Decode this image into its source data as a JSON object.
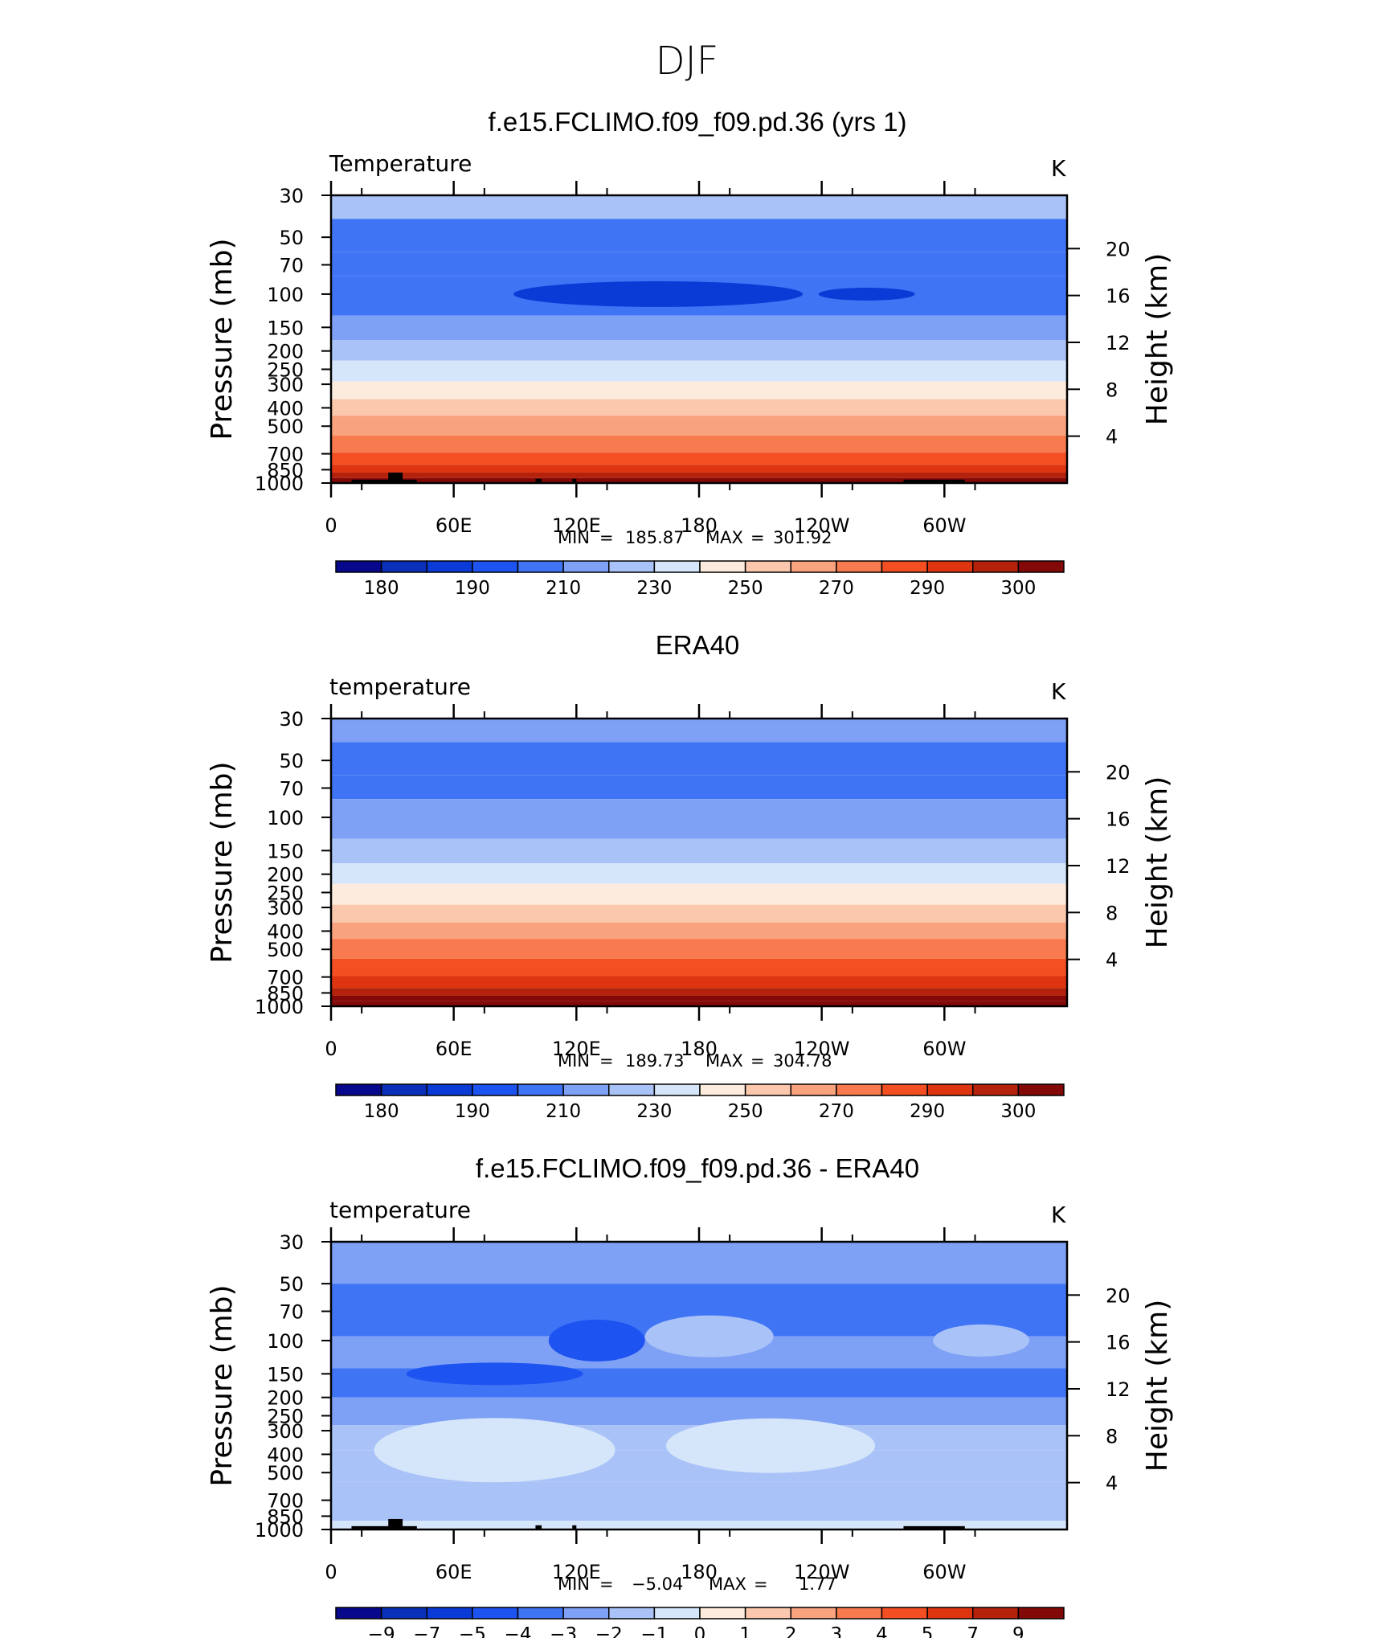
{
  "figure_title": "DJF",
  "colors": {
    "palette": [
      "#08088C",
      "#0A2FB8",
      "#0A3BD6",
      "#1D53F0",
      "#3F74F5",
      "#7EA0F5",
      "#A9C2F7",
      "#D5E6FA",
      "#FDECDD",
      "#FBC8AD",
      "#F9A27E",
      "#F77B4E",
      "#F34F23",
      "#DE3510",
      "#B4220C",
      "#830808"
    ],
    "topography": "#000000"
  },
  "chart_data": [
    {
      "type": "heatmap",
      "panel_title": "f.e15.FCLIMO.f09_f09.pd.36 (yrs 1)",
      "left_label": "Temperature",
      "right_label": "K",
      "xlabel": "",
      "ylabel": "Pressure (mb)",
      "y2label": "Height (km)",
      "x_ticks": [
        "0",
        "60E",
        "120E",
        "180",
        "120W",
        "60W"
      ],
      "y_ticks": [
        "30",
        "50",
        "70",
        "100",
        "150",
        "200",
        "250",
        "300",
        "400",
        "500",
        "700",
        "850",
        "1000"
      ],
      "y2_ticks": [
        "20",
        "16",
        "12",
        "8",
        "4"
      ],
      "min_label": "MIN",
      "max_label": "MAX",
      "min": "185.87",
      "max": "301.92",
      "colorbar_labels": [
        "180",
        "190",
        "210",
        "230",
        "250",
        "270",
        "290",
        "300"
      ],
      "contour_levels": [
        175,
        180,
        185,
        190,
        200,
        210,
        220,
        230,
        240,
        250,
        260,
        270,
        280,
        290,
        295,
        300
      ],
      "level_values": [
        225,
        210,
        198,
        194,
        190,
        202,
        214,
        224,
        234,
        246,
        256,
        266,
        276,
        286,
        292,
        298
      ]
    },
    {
      "type": "heatmap",
      "panel_title": "ERA40",
      "left_label": "temperature",
      "right_label": "K",
      "xlabel": "",
      "ylabel": "Pressure (mb)",
      "y2label": "Height (km)",
      "x_ticks": [
        "0",
        "60E",
        "120E",
        "180",
        "120W",
        "60W"
      ],
      "y_ticks": [
        "30",
        "50",
        "70",
        "100",
        "150",
        "200",
        "250",
        "300",
        "400",
        "500",
        "700",
        "850",
        "1000"
      ],
      "y2_ticks": [
        "20",
        "16",
        "12",
        "8",
        "4"
      ],
      "min_label": "MIN",
      "max_label": "MAX",
      "min": "189.73",
      "max": "304.78",
      "colorbar_labels": [
        "180",
        "190",
        "210",
        "230",
        "250",
        "270",
        "290",
        "300"
      ],
      "contour_levels": [
        175,
        180,
        185,
        190,
        200,
        210,
        220,
        230,
        240,
        250,
        260,
        270,
        280,
        290,
        295,
        300
      ],
      "level_values": [
        212,
        205,
        198,
        195,
        200,
        212,
        224,
        236,
        246,
        256,
        266,
        276,
        286,
        293,
        298,
        301
      ]
    },
    {
      "type": "heatmap",
      "panel_title": "f.e15.FCLIMO.f09_f09.pd.36 - ERA40",
      "left_label": "temperature",
      "right_label": "K",
      "xlabel": "",
      "ylabel": "Pressure (mb)",
      "y2label": "Height (km)",
      "x_ticks": [
        "0",
        "60E",
        "120E",
        "180",
        "120W",
        "60W"
      ],
      "y_ticks": [
        "30",
        "50",
        "70",
        "100",
        "150",
        "200",
        "250",
        "300",
        "400",
        "500",
        "700",
        "850",
        "1000"
      ],
      "y2_ticks": [
        "20",
        "16",
        "12",
        "8",
        "4"
      ],
      "min_label": "MIN",
      "max_label": "MAX",
      "min": "−5.04",
      "max": "1.77",
      "colorbar_labels": [
        "−9",
        "−7",
        "−5",
        "−4",
        "−3",
        "−2",
        "−1",
        "0",
        "1",
        "2",
        "3",
        "4",
        "5",
        "7",
        "9"
      ],
      "contour_levels": [
        -9,
        -7,
        -5,
        -4,
        -3,
        -2,
        -1,
        0,
        1,
        2,
        3,
        4,
        5,
        7,
        9
      ],
      "level_values": [
        -2.5,
        -3.2,
        -3.6,
        -3.0,
        -3.8,
        -2.6,
        -1.6,
        -1.2,
        -1.5,
        -1.9,
        -0.5
      ]
    }
  ]
}
